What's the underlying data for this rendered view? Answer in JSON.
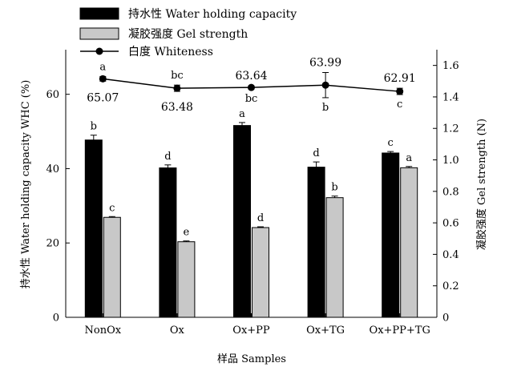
{
  "chart_data": {
    "type": "bar",
    "categories": [
      "NonOx",
      "Ox",
      "Ox+PP",
      "Ox+TG",
      "Ox+PP+TG"
    ],
    "xlabel": "样品 Samples",
    "ylabel_left": "持水性 Water holding capacity WHC (%)",
    "ylabel_right": "凝胶强度 Gel strength (N)",
    "ylim_left": [
      0,
      72
    ],
    "ylim_right": [
      0,
      1.7
    ],
    "yticks_left": [
      "0",
      "20",
      "40",
      "60"
    ],
    "yticks_right": [
      "0",
      "0.2",
      "0.4",
      "0.6",
      "0.8",
      "1.0",
      "1.2",
      "1.4",
      "1.6"
    ],
    "legend_position": "top-left",
    "series": [
      {
        "name": "持水性 Water holding capacity",
        "axis": "left",
        "kind": "bar",
        "color": "#000000",
        "values": [
          47.7,
          40.2,
          51.6,
          40.4,
          44.2
        ],
        "errors": [
          1.3,
          0.8,
          0.8,
          1.4,
          0.4
        ],
        "letters": [
          "b",
          "d",
          "a",
          "d",
          "c"
        ]
      },
      {
        "name": "凝胶强度 Gel strength",
        "axis": "right",
        "kind": "bar",
        "color": "#c8c8c8",
        "values": [
          0.635,
          0.48,
          0.57,
          0.76,
          0.95
        ],
        "errors": [
          0.005,
          0.005,
          0.005,
          0.01,
          0.008
        ],
        "letters": [
          "c",
          "e",
          "d",
          "b",
          "a"
        ]
      },
      {
        "name": "白度 Whiteness",
        "axis": "right",
        "kind": "line",
        "color": "#000000",
        "values": [
          1.515,
          1.455,
          1.46,
          1.475,
          1.435
        ],
        "errors": [
          0.015,
          0.02,
          0.01,
          0.08,
          0.02
        ],
        "letters": [
          "a",
          "bc",
          "bc",
          "b",
          "c"
        ],
        "value_labels": [
          "65.07",
          "63.48",
          "63.64",
          "63.99",
          "62.91"
        ]
      }
    ]
  }
}
